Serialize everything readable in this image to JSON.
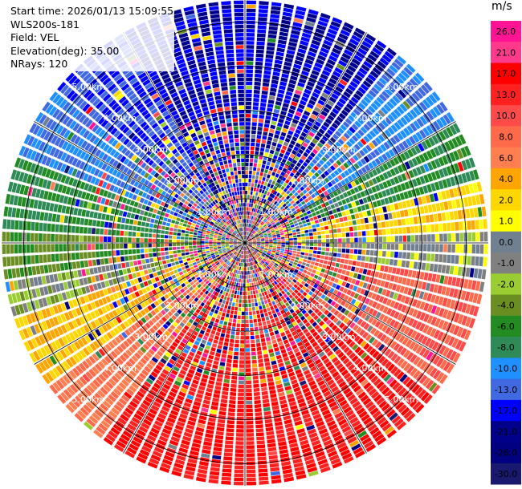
{
  "header": {
    "start_time": "Start time: 2026/01/13 15:09:55",
    "station": "WLS200s-181",
    "field": "Field: VEL",
    "elevation": "Elevation(deg): 35.00",
    "nrays": "NRays: 120"
  },
  "chart_data": {
    "type": "heatmap",
    "projection": "polar-ppi",
    "field": "VEL",
    "n_rays": 120,
    "range_rings_km": [
      1,
      2,
      3,
      4,
      5
    ],
    "range_ring_labels": [
      "1.00km",
      "2.00km",
      "3.00km",
      "4.00km",
      "5.00km"
    ],
    "max_range_km": 5.5,
    "colorbar": {
      "unit": "m/s",
      "ticks": [
        "26.0",
        "21.0",
        "17.0",
        "13.0",
        "10.0",
        "8.0",
        "6.0",
        "4.0",
        "2.0",
        "1.0",
        "0.0",
        "-1.0",
        "-2.0",
        "-4.0",
        "-6.0",
        "-8.0",
        "-10.0",
        "-13.0",
        "-17.0",
        "-21.0",
        "-26.0",
        "-30.0"
      ],
      "colors": [
        "#ff1493",
        "#ff3a8c",
        "#ff0000",
        "#ff2020",
        "#ff4a4a",
        "#ff6a4a",
        "#ff7f50",
        "#ffa500",
        "#ffd700",
        "#ffff00",
        "#708090",
        "#808080",
        "#9acd32",
        "#6b8e23",
        "#228b22",
        "#2e8b57",
        "#1e90ff",
        "#4169e1",
        "#0000ff",
        "#00008b",
        "#000080",
        "#191970"
      ],
      "range": [
        -30,
        30
      ]
    },
    "sectors": [
      {
        "az_from": 0,
        "az_to": 40,
        "velocity": -17
      },
      {
        "az_from": 40,
        "az_to": 60,
        "velocity": -10
      },
      {
        "az_from": 60,
        "az_to": 75,
        "velocity": -6
      },
      {
        "az_from": 75,
        "az_to": 87,
        "velocity": 3
      },
      {
        "az_from": 87,
        "az_to": 100,
        "velocity": 0
      },
      {
        "az_from": 100,
        "az_to": 130,
        "velocity": 10
      },
      {
        "az_from": 130,
        "az_to": 175,
        "velocity": 17
      },
      {
        "az_from": 175,
        "az_to": 215,
        "velocity": 17
      },
      {
        "az_from": 215,
        "az_to": 235,
        "velocity": 8
      },
      {
        "az_from": 235,
        "az_to": 252,
        "velocity": 4
      },
      {
        "az_from": 252,
        "az_to": 262,
        "velocity": -1
      },
      {
        "az_from": 262,
        "az_to": 272,
        "velocity": -4
      },
      {
        "az_from": 272,
        "az_to": 292,
        "velocity": -6
      },
      {
        "az_from": 292,
        "az_to": 310,
        "velocity": -10
      },
      {
        "az_from": 310,
        "az_to": 330,
        "velocity": -13
      },
      {
        "az_from": 330,
        "az_to": 360,
        "velocity": -17
      }
    ]
  }
}
